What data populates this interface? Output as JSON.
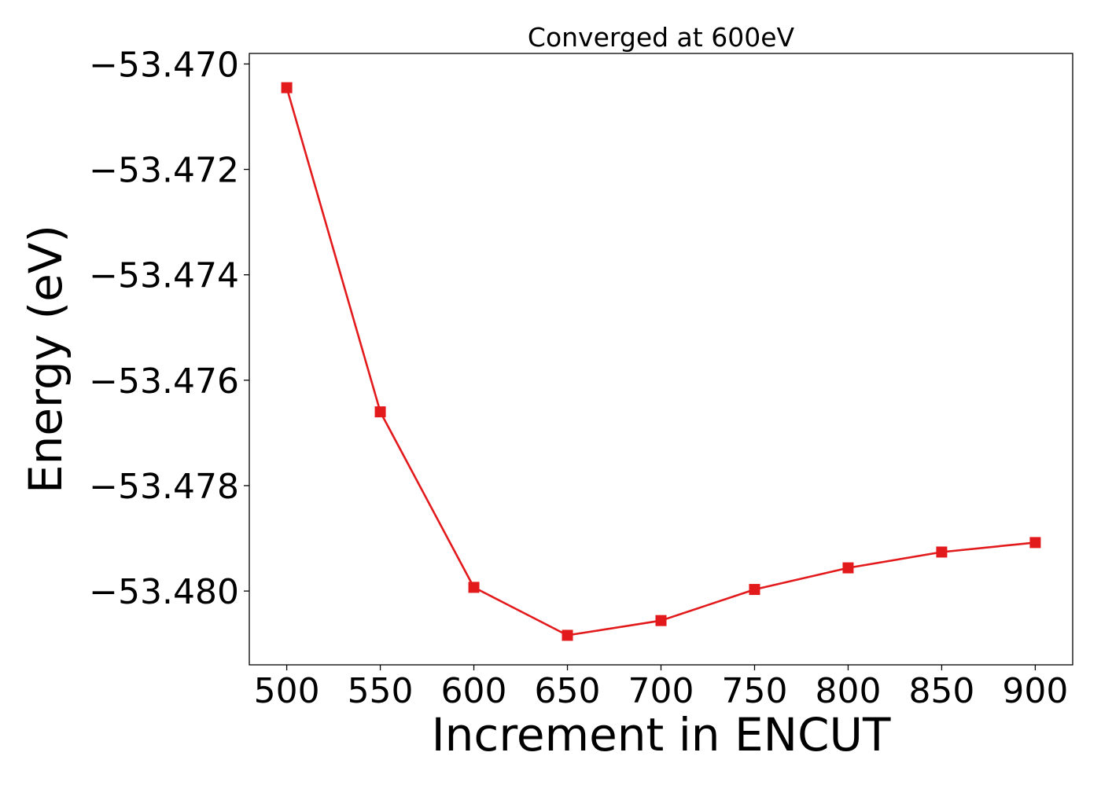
{
  "chart_data": {
    "type": "line",
    "title": "Converged at 600eV",
    "xlabel": "Increment in ENCUT",
    "ylabel": "Energy (eV)",
    "xlim": [
      480,
      920
    ],
    "ylim": [
      -53.4814,
      -53.4698
    ],
    "x_ticks": [
      500,
      550,
      600,
      650,
      700,
      750,
      800,
      850,
      900
    ],
    "x_tick_labels": [
      "500",
      "550",
      "600",
      "650",
      "700",
      "750",
      "800",
      "850",
      "900"
    ],
    "y_ticks": [
      -53.47,
      -53.472,
      -53.474,
      -53.476,
      -53.478,
      -53.48
    ],
    "y_tick_labels": [
      "−53.470",
      "−53.472",
      "−53.474",
      "−53.476",
      "−53.478",
      "−53.480"
    ],
    "grid": false,
    "series": [
      {
        "color": "#e31a1c",
        "marker": "square",
        "x": [
          500,
          550,
          600,
          650,
          700,
          750,
          800,
          850,
          900
        ],
        "y": [
          -53.47045,
          -53.4766,
          -53.47993,
          -53.48084,
          -53.48056,
          -53.47997,
          -53.47956,
          -53.47926,
          -53.47908
        ]
      }
    ]
  }
}
